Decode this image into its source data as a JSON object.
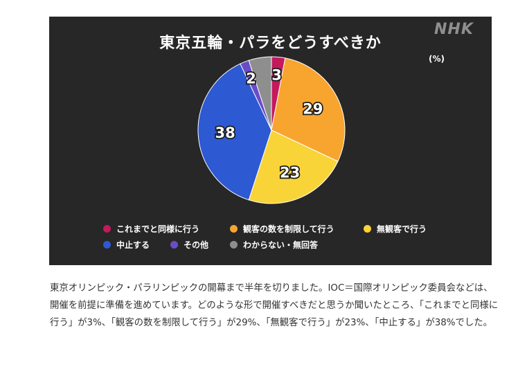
{
  "chart_data": {
    "type": "pie",
    "title": "東京五輪・パラをどうすべきか",
    "unit": "(%)",
    "categories": [
      "これまでと同様に行う",
      "観客の数を制限して行う",
      "無観客で行う",
      "中止する",
      "その他",
      "わからない・無回答"
    ],
    "values": [
      3,
      29,
      23,
      38,
      2,
      5
    ],
    "value_labels": [
      "3",
      "29",
      "23",
      "38",
      "2",
      ""
    ],
    "colors": [
      "#c3195d",
      "#f7a52f",
      "#f9d438",
      "#2d59d2",
      "#6b4cc7",
      "#8e8e8e"
    ],
    "legend_placement": "bottom"
  },
  "logo": "NHK",
  "caption": "東京オリンピック・パラリンピックの開幕まで半年を切りました。IOC＝国際オリンピック委員会などは、開催を前提に準備を進めています。どのような形で開催すべきだと思うか聞いたところ、「これまでと同様に行う」が3%、「観客の数を制限して行う」が29%、「無観客で行う」が23%、「中止する」が38%でした。"
}
